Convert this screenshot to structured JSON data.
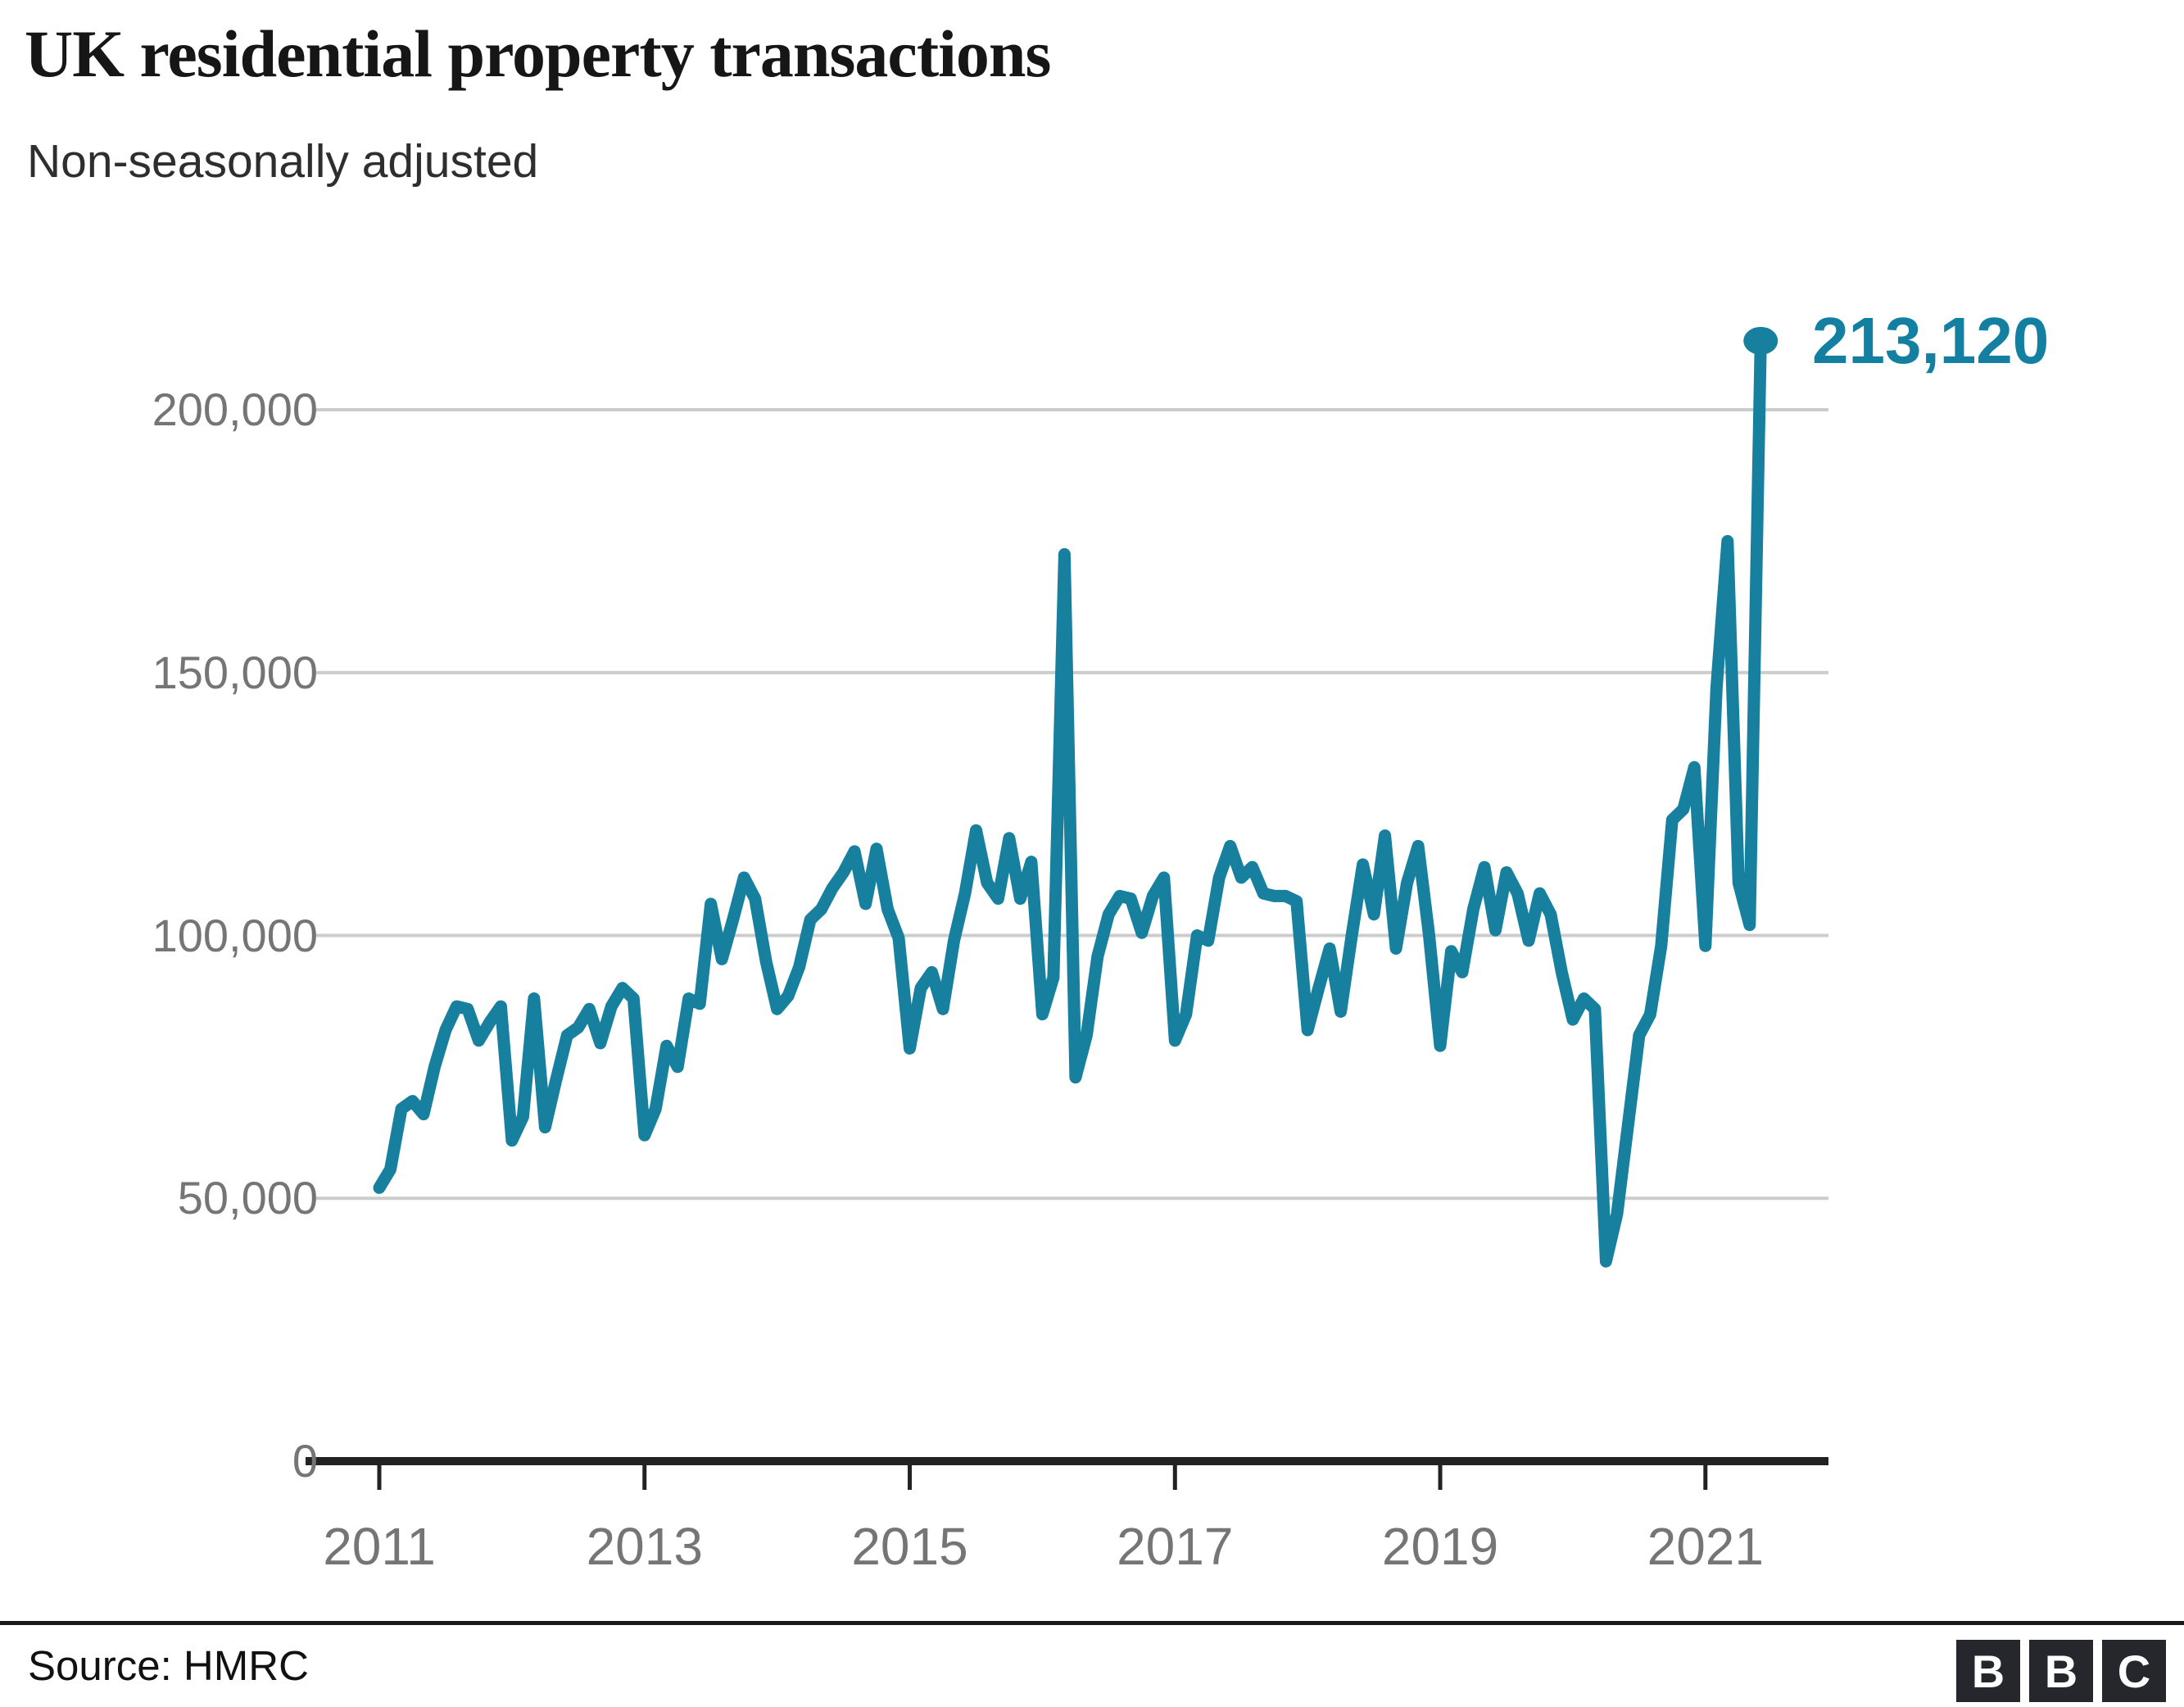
{
  "title": "UK residential property transactions",
  "subtitle": "Non-seasonally adjusted",
  "annotation": {
    "label": "213,120"
  },
  "footer": {
    "source": "Source: HMRC",
    "logo_letters": [
      "B",
      "B",
      "C"
    ]
  },
  "colors": {
    "line": "#17809e",
    "annotation": "#1380a1",
    "grid": "#cccccc",
    "axis": "#222222",
    "tick_label": "#757575",
    "logo_bg": "#25272c"
  },
  "chart_data": {
    "type": "line",
    "title": "UK residential property transactions",
    "subtitle": "Non-seasonally adjusted",
    "xlabel": "",
    "ylabel": "",
    "ylim": [
      0,
      220000
    ],
    "grid": true,
    "frequency": "monthly",
    "x_start": "2011-01",
    "x_end": "2021-06",
    "y_ticks": [
      {
        "value": 200000,
        "label": "200,000"
      },
      {
        "value": 150000,
        "label": "150,000"
      },
      {
        "value": 100000,
        "label": "100,000"
      },
      {
        "value": 50000,
        "label": "50,000"
      },
      {
        "value": 0,
        "label": "0"
      }
    ],
    "x_ticks": [
      {
        "year": 2011,
        "label": "2011"
      },
      {
        "year": 2013,
        "label": "2013"
      },
      {
        "year": 2015,
        "label": "2015"
      },
      {
        "year": 2017,
        "label": "2017"
      },
      {
        "year": 2019,
        "label": "2019"
      },
      {
        "year": 2021,
        "label": "2021"
      }
    ],
    "series": [
      {
        "name": "Residential property transactions",
        "final_value": 213120,
        "final_value_label": "213,120",
        "values": [
          52000,
          55500,
          67000,
          68500,
          66000,
          75000,
          82000,
          86500,
          86000,
          80000,
          83500,
          86500,
          61000,
          65500,
          88000,
          63500,
          72500,
          81000,
          82500,
          86000,
          79500,
          86500,
          90000,
          88000,
          62000,
          67000,
          79000,
          75000,
          88000,
          87000,
          106000,
          95500,
          103000,
          111000,
          107000,
          95000,
          86000,
          88500,
          94000,
          103000,
          105000,
          109000,
          112000,
          116000,
          106000,
          116500,
          105000,
          99500,
          78500,
          90000,
          93000,
          86000,
          99000,
          108000,
          120000,
          110000,
          107000,
          118500,
          107000,
          114000,
          85000,
          92000,
          172500,
          73000,
          81000,
          96000,
          104000,
          107500,
          107000,
          100500,
          107500,
          111000,
          80000,
          85000,
          100000,
          99000,
          111000,
          117000,
          111000,
          113000,
          108000,
          107500,
          107500,
          106500,
          82000,
          90000,
          97500,
          85500,
          100000,
          113500,
          104000,
          119000,
          97500,
          110000,
          117000,
          100000,
          79000,
          97000,
          93000,
          105000,
          113000,
          101000,
          112000,
          108000,
          99000,
          108000,
          104000,
          93000,
          84000,
          88000,
          86000,
          38000,
          47000,
          64000,
          81000,
          85000,
          98000,
          122000,
          124000,
          132000,
          98000,
          147000,
          175000,
          110000,
          102000,
          213120
        ]
      }
    ]
  }
}
